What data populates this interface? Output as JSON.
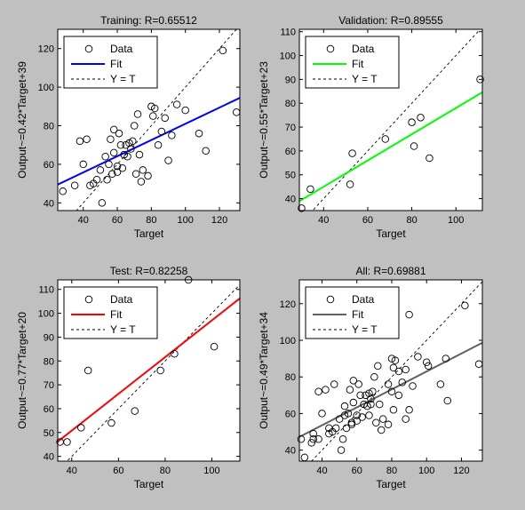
{
  "chart_data": [
    {
      "type": "scatter",
      "title": "Training: R=0.65512",
      "xlabel": "Target",
      "ylabel": "Output~=0.42*Target+39",
      "xlim": [
        25,
        132
      ],
      "ylim": [
        36,
        130
      ],
      "xticks": [
        40,
        60,
        80,
        100,
        120
      ],
      "yticks": [
        40,
        60,
        80,
        100,
        120
      ],
      "grid": false,
      "legend": {
        "position": "top-left",
        "entries": [
          "Data",
          "Fit",
          "Y = T"
        ]
      },
      "fit": {
        "slope": 0.42,
        "intercept": 39,
        "color": "#0000ff"
      },
      "x": [
        28,
        35,
        38,
        40,
        42,
        44,
        46,
        48,
        50,
        51,
        53,
        54,
        55,
        56,
        57,
        58,
        58,
        60,
        60,
        61,
        62,
        63,
        64,
        65,
        66,
        67,
        68,
        69,
        70,
        71,
        72,
        73,
        74,
        75,
        78,
        80,
        81,
        82,
        84,
        86,
        88,
        90,
        92,
        95,
        100,
        108,
        112,
        122,
        130
      ],
      "y": [
        46,
        49,
        72,
        60,
        73,
        49,
        50,
        52,
        57,
        40,
        64,
        52,
        60,
        73,
        55,
        78,
        66,
        56,
        59,
        76,
        70,
        58,
        65,
        70,
        64,
        71,
        68,
        72,
        80,
        55,
        86,
        65,
        51,
        57,
        54,
        90,
        85,
        89,
        70,
        77,
        84,
        62,
        75,
        91,
        88,
        76,
        67,
        119,
        87
      ]
    },
    {
      "type": "scatter",
      "title": "Validation: R=0.89555",
      "xlabel": "Target",
      "ylabel": "Output~=0.55*Target+23",
      "xlim": [
        29,
        112
      ],
      "ylim": [
        35,
        111
      ],
      "xticks": [
        40,
        60,
        80,
        100
      ],
      "yticks": [
        40,
        50,
        60,
        70,
        80,
        90,
        100,
        110
      ],
      "grid": false,
      "legend": {
        "position": "top-left",
        "entries": [
          "Data",
          "Fit",
          "Y = T"
        ]
      },
      "fit": {
        "slope": 0.55,
        "intercept": 23,
        "color": "#00ff00"
      },
      "x": [
        30,
        34,
        52,
        53,
        68,
        80,
        81,
        84,
        88,
        111
      ],
      "y": [
        36,
        44,
        46,
        59,
        65,
        72,
        62,
        74,
        57,
        90
      ]
    },
    {
      "type": "scatter",
      "title": "Test: R=0.82258",
      "xlabel": "Target",
      "ylabel": "Output~=0.77*Target+20",
      "xlim": [
        34,
        112
      ],
      "ylim": [
        38,
        114
      ],
      "xticks": [
        40,
        60,
        80,
        100
      ],
      "yticks": [
        40,
        50,
        60,
        70,
        80,
        90,
        100,
        110
      ],
      "grid": false,
      "legend": {
        "position": "top-left",
        "entries": [
          "Data",
          "Fit",
          "Y = T"
        ]
      },
      "fit": {
        "slope": 0.77,
        "intercept": 20,
        "color": "#ff0000"
      },
      "x": [
        35,
        38,
        44,
        47,
        57,
        67,
        78,
        84,
        90,
        101
      ],
      "y": [
        46,
        46,
        52,
        76,
        54,
        59,
        76,
        83,
        114,
        86
      ]
    },
    {
      "type": "scatter",
      "title": "All: R=0.69881",
      "xlabel": "Target",
      "ylabel": "Output~=0.49*Target+34",
      "xlim": [
        27,
        132
      ],
      "ylim": [
        34,
        133
      ],
      "xticks": [
        40,
        60,
        80,
        100,
        120
      ],
      "yticks": [
        40,
        60,
        80,
        100,
        120
      ],
      "grid": false,
      "legend": {
        "position": "top-left",
        "entries": [
          "Data",
          "Fit",
          "Y = T"
        ]
      },
      "fit": {
        "slope": 0.49,
        "intercept": 34,
        "color": "#606060"
      },
      "x": [
        28,
        30,
        34,
        35,
        35,
        38,
        38,
        40,
        42,
        44,
        44,
        46,
        47,
        48,
        50,
        51,
        52,
        53,
        53,
        54,
        55,
        56,
        57,
        57,
        58,
        58,
        60,
        60,
        61,
        62,
        63,
        64,
        65,
        66,
        67,
        67,
        68,
        68,
        69,
        70,
        71,
        72,
        73,
        74,
        75,
        78,
        78,
        80,
        80,
        81,
        81,
        82,
        84,
        84,
        86,
        88,
        88,
        90,
        90,
        92,
        95,
        100,
        101,
        108,
        111,
        112,
        122,
        130
      ],
      "y": [
        46,
        36,
        44,
        46,
        49,
        46,
        72,
        60,
        73,
        49,
        52,
        50,
        76,
        52,
        57,
        40,
        46,
        64,
        59,
        52,
        60,
        73,
        55,
        54,
        78,
        66,
        56,
        59,
        76,
        70,
        58,
        65,
        70,
        64,
        71,
        59,
        68,
        65,
        72,
        80,
        55,
        86,
        65,
        51,
        57,
        54,
        76,
        90,
        72,
        85,
        62,
        89,
        70,
        83,
        77,
        84,
        57,
        62,
        114,
        75,
        91,
        88,
        86,
        76,
        90,
        67,
        119,
        87
      ]
    }
  ]
}
